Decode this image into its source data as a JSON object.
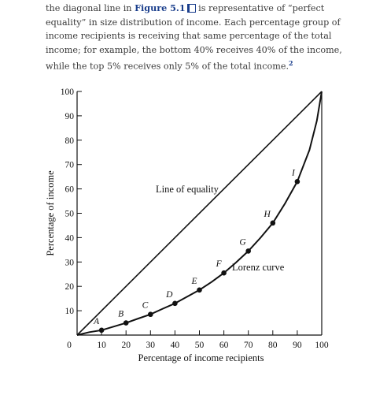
{
  "intro": {
    "line1_a": "the diagonal line in",
    "figure_link": "Figure 5.1",
    "line1_b": "is representative of",
    "rest": "“perfect equality” in size distribution of income. Each percentage group of income recipients is receiving that same percentage of the total income; for example, the bottom 40% receives 40% of the income, while the top 5% receives only 5% of the total income.",
    "footnote": "2"
  },
  "colors": {
    "link": "#1a3e8c",
    "ink": "#111111",
    "text": "#3a3a3a"
  },
  "chart_data": {
    "type": "line",
    "xlabel": "Percentage of income recipients",
    "ylabel": "Percentage of income",
    "xlim": [
      0,
      100
    ],
    "ylim": [
      0,
      100
    ],
    "x_ticks": [
      10,
      20,
      30,
      40,
      50,
      60,
      70,
      80,
      90,
      100
    ],
    "y_ticks": [
      10,
      20,
      30,
      40,
      50,
      60,
      70,
      80,
      90,
      100
    ],
    "origin_label": "0",
    "grid": false,
    "series": [
      {
        "name": "Line of equality",
        "x": [
          0,
          100
        ],
        "y": [
          0,
          100
        ]
      },
      {
        "name": "Lorenz curve",
        "x": [
          0,
          5,
          10,
          15,
          20,
          25,
          30,
          35,
          40,
          45,
          50,
          55,
          60,
          65,
          70,
          75,
          80,
          85,
          90,
          95,
          98,
          100
        ],
        "y": [
          0,
          1.2,
          2,
          3.5,
          5,
          6.8,
          8.5,
          10.8,
          13,
          15.8,
          18.5,
          21.8,
          25.5,
          29.8,
          34.5,
          40,
          46,
          54,
          63,
          76,
          88,
          100
        ]
      }
    ],
    "labeled_points": [
      {
        "label": "A",
        "x": 10,
        "y": 2
      },
      {
        "label": "B",
        "x": 20,
        "y": 5
      },
      {
        "label": "C",
        "x": 30,
        "y": 8.5
      },
      {
        "label": "D",
        "x": 40,
        "y": 13
      },
      {
        "label": "E",
        "x": 50,
        "y": 18.5
      },
      {
        "label": "F",
        "x": 60,
        "y": 25.5
      },
      {
        "label": "G",
        "x": 70,
        "y": 34.5
      },
      {
        "label": "H",
        "x": 80,
        "y": 46
      },
      {
        "label": "I",
        "x": 90,
        "y": 63
      }
    ],
    "annotations": [
      {
        "text": "Line of equality",
        "x": 45,
        "y": 58.5
      },
      {
        "text": "Lorenz curve",
        "x": 74,
        "y": 26.5
      }
    ]
  }
}
